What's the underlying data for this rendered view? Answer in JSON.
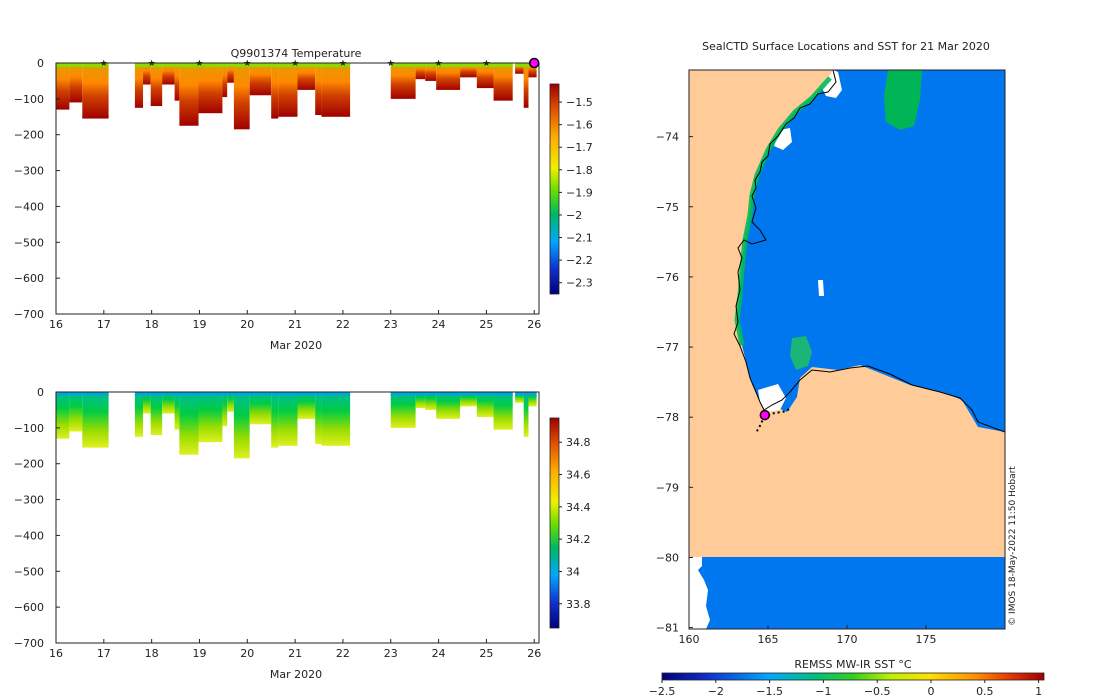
{
  "figure": {
    "credit": "© IMOS 18-May-2022 11:50 Hobart"
  },
  "chart_data": [
    {
      "type": "heatmap",
      "name": "temperature-section",
      "title": "Q9901374  Temperature",
      "xlabel": "Mar 2020",
      "ylabel": "",
      "xlim": [
        16,
        26.1
      ],
      "ylim": [
        -700,
        0
      ],
      "x_ticks": [
        16,
        17,
        18,
        19,
        20,
        21,
        22,
        23,
        24,
        25,
        26
      ],
      "y_ticks": [
        0,
        -100,
        -200,
        -300,
        -400,
        -500,
        -600,
        -700
      ],
      "colorbar": {
        "min": -2.35,
        "max": -1.42,
        "ticks": [
          -1.5,
          -1.6,
          -1.7,
          -1.8,
          -1.9,
          -2,
          -2.1,
          -2.2,
          -2.3
        ]
      },
      "markers": {
        "name": "daily profile markers",
        "color": "#ff00ff",
        "x": [
          17,
          18,
          19,
          20,
          21,
          22,
          23,
          24,
          25
        ],
        "y": 0
      },
      "current": {
        "x": 26,
        "y": 0
      },
      "profiles": [
        {
          "x0": 16.0,
          "x1": 16.28,
          "depth": 130
        },
        {
          "x0": 16.28,
          "x1": 16.55,
          "depth": 110
        },
        {
          "x0": 16.55,
          "x1": 17.1,
          "depth": 155
        },
        {
          "x0": 17.65,
          "x1": 17.82,
          "depth": 125
        },
        {
          "x0": 17.82,
          "x1": 17.98,
          "depth": 60
        },
        {
          "x0": 17.98,
          "x1": 18.22,
          "depth": 120
        },
        {
          "x0": 18.22,
          "x1": 18.48,
          "depth": 60
        },
        {
          "x0": 18.48,
          "x1": 18.58,
          "depth": 105
        },
        {
          "x0": 18.58,
          "x1": 18.98,
          "depth": 175
        },
        {
          "x0": 18.98,
          "x1": 19.48,
          "depth": 140
        },
        {
          "x0": 19.48,
          "x1": 19.58,
          "depth": 95
        },
        {
          "x0": 19.58,
          "x1": 19.72,
          "depth": 55
        },
        {
          "x0": 19.72,
          "x1": 20.05,
          "depth": 185
        },
        {
          "x0": 20.05,
          "x1": 20.5,
          "depth": 90
        },
        {
          "x0": 20.5,
          "x1": 20.65,
          "depth": 155
        },
        {
          "x0": 20.65,
          "x1": 21.05,
          "depth": 150
        },
        {
          "x0": 21.05,
          "x1": 21.42,
          "depth": 75
        },
        {
          "x0": 21.42,
          "x1": 21.55,
          "depth": 145
        },
        {
          "x0": 21.55,
          "x1": 22.15,
          "depth": 150
        },
        {
          "x0": 23.0,
          "x1": 23.52,
          "depth": 100
        },
        {
          "x0": 23.52,
          "x1": 23.72,
          "depth": 45
        },
        {
          "x0": 23.72,
          "x1": 23.95,
          "depth": 50
        },
        {
          "x0": 23.95,
          "x1": 24.45,
          "depth": 75
        },
        {
          "x0": 24.45,
          "x1": 24.8,
          "depth": 40
        },
        {
          "x0": 24.8,
          "x1": 25.15,
          "depth": 70
        },
        {
          "x0": 25.15,
          "x1": 25.55,
          "depth": 105
        },
        {
          "x0": 25.6,
          "x1": 25.78,
          "depth": 30
        },
        {
          "x0": 25.78,
          "x1": 25.88,
          "depth": 125
        },
        {
          "x0": 25.88,
          "x1": 26.05,
          "depth": 40
        }
      ]
    },
    {
      "type": "heatmap",
      "name": "salinity-section",
      "title": "",
      "xlabel": "Mar 2020",
      "ylabel": "",
      "xlim": [
        16,
        26.1
      ],
      "ylim": [
        -700,
        0
      ],
      "x_ticks": [
        16,
        17,
        18,
        19,
        20,
        21,
        22,
        23,
        24,
        25,
        26
      ],
      "y_ticks": [
        0,
        -100,
        -200,
        -300,
        -400,
        -500,
        -600,
        -700
      ],
      "colorbar": {
        "min": 33.65,
        "max": 34.95,
        "ticks": [
          34.8,
          34.6,
          34.4,
          34.2,
          34,
          33.8
        ]
      },
      "profiles_from": "temperature-section"
    },
    {
      "type": "heatmap",
      "name": "sst-map",
      "title": "SealCTD Surface Locations and SST for 21 Mar 2020",
      "xlabel": "",
      "ylabel": "",
      "xlim": [
        160,
        180
      ],
      "ylim": [
        -81.02,
        -73.05
      ],
      "x_ticks": [
        160,
        165,
        170,
        175
      ],
      "y_ticks": [
        -74,
        -75,
        -76,
        -77,
        -78,
        -79,
        -80,
        -81
      ],
      "colorbar": {
        "label": "REMSS MW-IR SST °C",
        "min": -2.5,
        "max": 1.05,
        "ticks": [
          -2.5,
          -2,
          -1.5,
          -1,
          -0.5,
          0,
          0.5,
          1
        ]
      },
      "seal_track": [
        [
          164.3,
          -78.2
        ],
        [
          164.5,
          -78.12
        ],
        [
          164.7,
          -78.02
        ],
        [
          165.2,
          -77.95
        ],
        [
          166.0,
          -77.92
        ],
        [
          166.4,
          -77.88
        ]
      ],
      "seal_position": [
        164.8,
        -77.97
      ]
    }
  ]
}
